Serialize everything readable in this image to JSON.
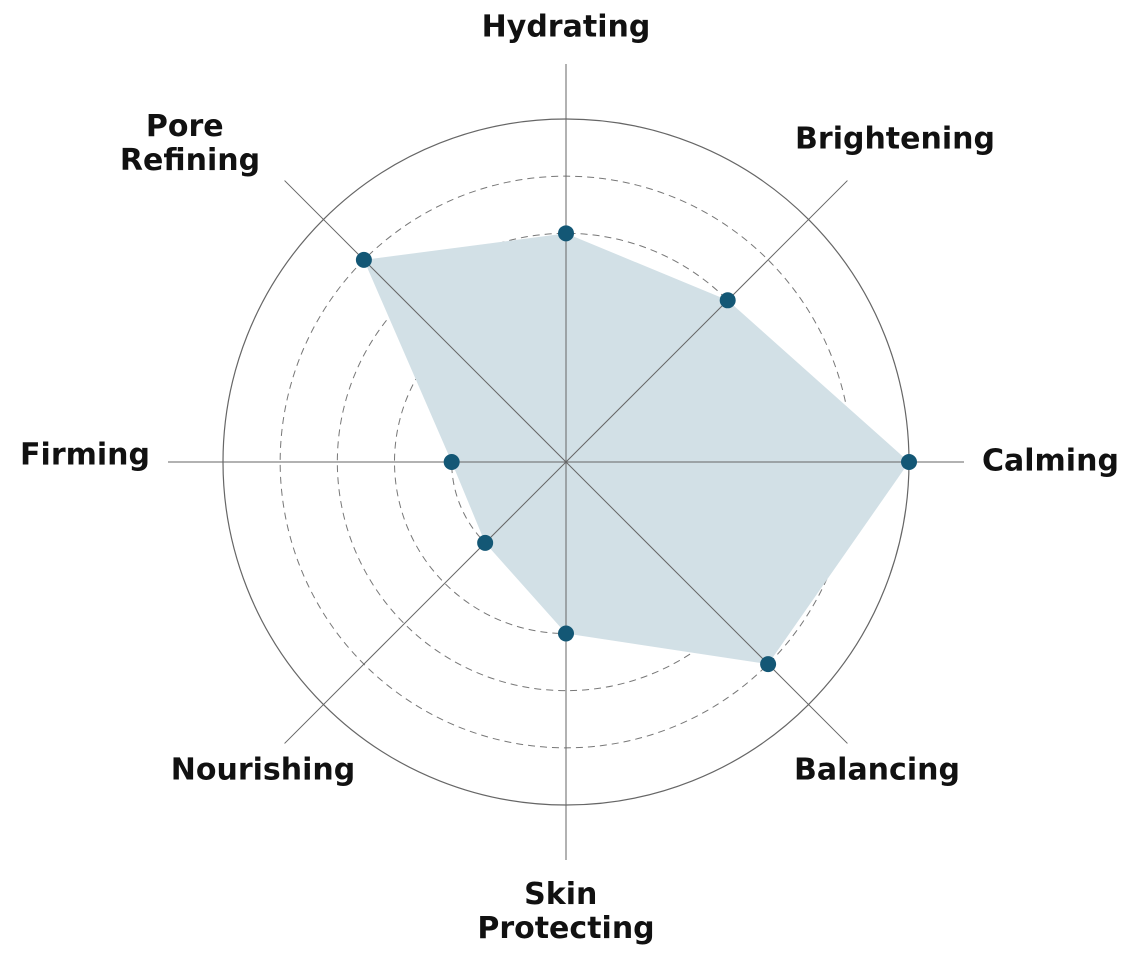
{
  "chart_data": {
    "type": "radar",
    "categories": [
      "Hydrating",
      "Brightening",
      "Calming",
      "Balancing",
      "Skin Protecting",
      "Nourishing",
      "Firming",
      "Pore Refining"
    ],
    "values": [
      4,
      4,
      6,
      5,
      3,
      2,
      2,
      5
    ],
    "color": "#135775",
    "fill_color": "#d2e0e6",
    "rlim": [
      0,
      6
    ],
    "rticks": [
      2,
      3,
      4,
      5,
      6
    ],
    "grid": true
  }
}
